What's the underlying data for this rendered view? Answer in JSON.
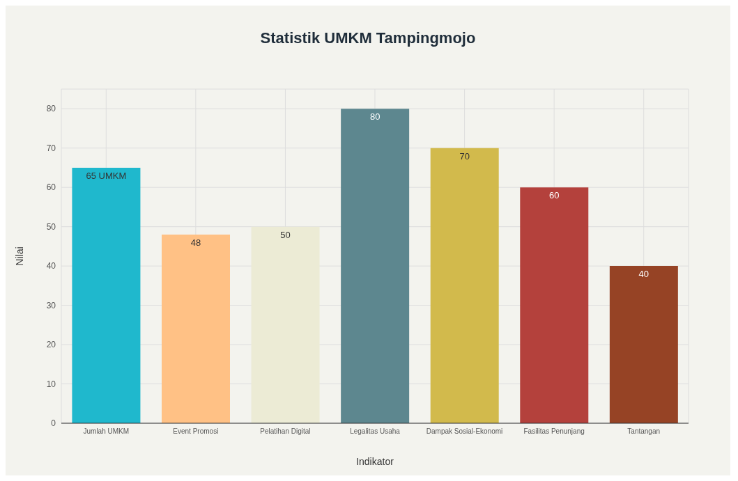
{
  "chart_data": {
    "type": "bar",
    "title": "Statistik UMKM Tampingmojo",
    "xlabel": "Indikator",
    "ylabel": "Nilai",
    "categories": [
      "Jumlah UMKM",
      "Event Promosi",
      "Pelatihan Digital",
      "Legalitas Usaha",
      "Dampak Sosial-Ekonomi",
      "Fasilitas Penunjang",
      "Tantangan"
    ],
    "values": [
      65,
      48,
      50,
      80,
      70,
      60,
      40
    ],
    "colors": [
      "#1fb8cd",
      "#ffc185",
      "#eceBd5",
      "#5d878f",
      "#d2ba4c",
      "#b4413c",
      "#964325"
    ],
    "value_labels": [
      "65 UMKM",
      "48",
      "50",
      "80",
      "70",
      "60",
      "40"
    ],
    "ylim": [
      0,
      85
    ],
    "yticks": [
      0,
      10,
      20,
      30,
      40,
      50,
      60,
      70,
      80
    ],
    "grid": true
  }
}
